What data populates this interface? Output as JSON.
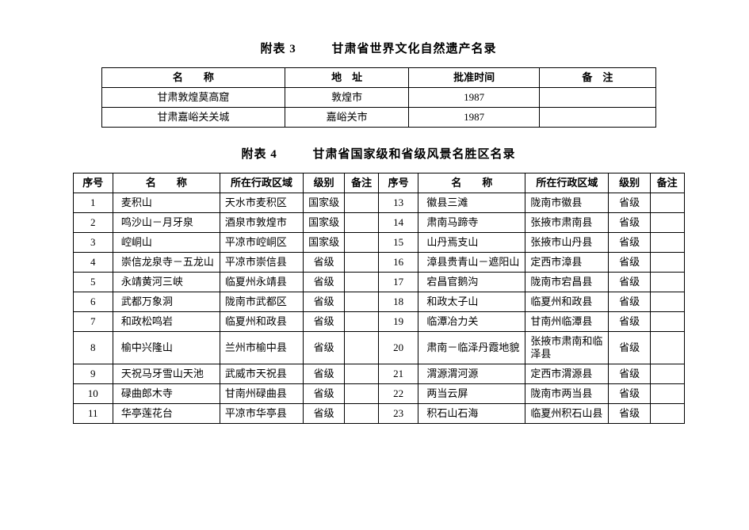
{
  "table3": {
    "label": "附表 3",
    "title": "甘肃省世界文化自然遗产名录",
    "headers": {
      "name": "名　　称",
      "addr": "地　址",
      "date": "批准时间",
      "note": "备　注"
    },
    "rows": [
      {
        "name": "甘肃敦煌莫高窟",
        "addr": "敦煌市",
        "date": "1987",
        "note": ""
      },
      {
        "name": "甘肃嘉峪关关城",
        "addr": "嘉峪关市",
        "date": "1987",
        "note": ""
      }
    ]
  },
  "table4": {
    "label": "附表 4",
    "title": "甘肃省国家级和省级风景名胜区名录",
    "headers": {
      "no": "序号",
      "name": "名　　称",
      "region": "所在行政区域",
      "level": "级别",
      "note": "备注"
    },
    "left": [
      {
        "no": "1",
        "name": "麦积山",
        "region": "天水市麦积区",
        "level": "国家级",
        "note": ""
      },
      {
        "no": "2",
        "name": "鸣沙山－月牙泉",
        "region": "酒泉市敦煌市",
        "level": "国家级",
        "note": ""
      },
      {
        "no": "3",
        "name": "崆峒山",
        "region": "平凉市崆峒区",
        "level": "国家级",
        "note": ""
      },
      {
        "no": "4",
        "name": "崇信龙泉寺－五龙山",
        "region": "平凉市崇信县",
        "level": "省级",
        "note": ""
      },
      {
        "no": "5",
        "name": "永靖黄河三峡",
        "region": "临夏州永靖县",
        "level": "省级",
        "note": ""
      },
      {
        "no": "6",
        "name": "武都万象洞",
        "region": "陇南市武都区",
        "level": "省级",
        "note": ""
      },
      {
        "no": "7",
        "name": "和政松鸣岩",
        "region": "临夏州和政县",
        "level": "省级",
        "note": ""
      },
      {
        "no": "8",
        "name": "榆中兴隆山",
        "region": "兰州市榆中县",
        "level": "省级",
        "note": ""
      },
      {
        "no": "9",
        "name": "天祝马牙雪山天池",
        "region": "武威市天祝县",
        "level": "省级",
        "note": ""
      },
      {
        "no": "10",
        "name": "碌曲郎木寺",
        "region": "甘南州碌曲县",
        "level": "省级",
        "note": ""
      },
      {
        "no": "11",
        "name": "华亭莲花台",
        "region": "平凉市华亭县",
        "level": "省级",
        "note": ""
      }
    ],
    "right": [
      {
        "no": "13",
        "name": "徽县三滩",
        "region": "陇南市徽县",
        "level": "省级",
        "note": ""
      },
      {
        "no": "14",
        "name": "肃南马蹄寺",
        "region": "张掖市肃南县",
        "level": "省级",
        "note": ""
      },
      {
        "no": "15",
        "name": "山丹焉支山",
        "region": "张掖市山丹县",
        "level": "省级",
        "note": ""
      },
      {
        "no": "16",
        "name": "漳县贵青山－遮阳山",
        "region": "定西市漳县",
        "level": "省级",
        "note": ""
      },
      {
        "no": "17",
        "name": "宕昌官鹅沟",
        "region": "陇南市宕昌县",
        "level": "省级",
        "note": ""
      },
      {
        "no": "18",
        "name": "和政太子山",
        "region": "临夏州和政县",
        "level": "省级",
        "note": ""
      },
      {
        "no": "19",
        "name": "临潭冶力关",
        "region": "甘南州临潭县",
        "level": "省级",
        "note": ""
      },
      {
        "no": "20",
        "name": "肃南－临泽丹霞地貌",
        "region": "张掖市肃南和临泽县",
        "level": "省级",
        "note": ""
      },
      {
        "no": "21",
        "name": "渭源渭河源",
        "region": "定西市渭源县",
        "level": "省级",
        "note": ""
      },
      {
        "no": "22",
        "name": "两当云屏",
        "region": "陇南市两当县",
        "level": "省级",
        "note": ""
      },
      {
        "no": "23",
        "name": "积石山石海",
        "region": "临夏州积石山县",
        "level": "省级",
        "note": ""
      }
    ]
  }
}
